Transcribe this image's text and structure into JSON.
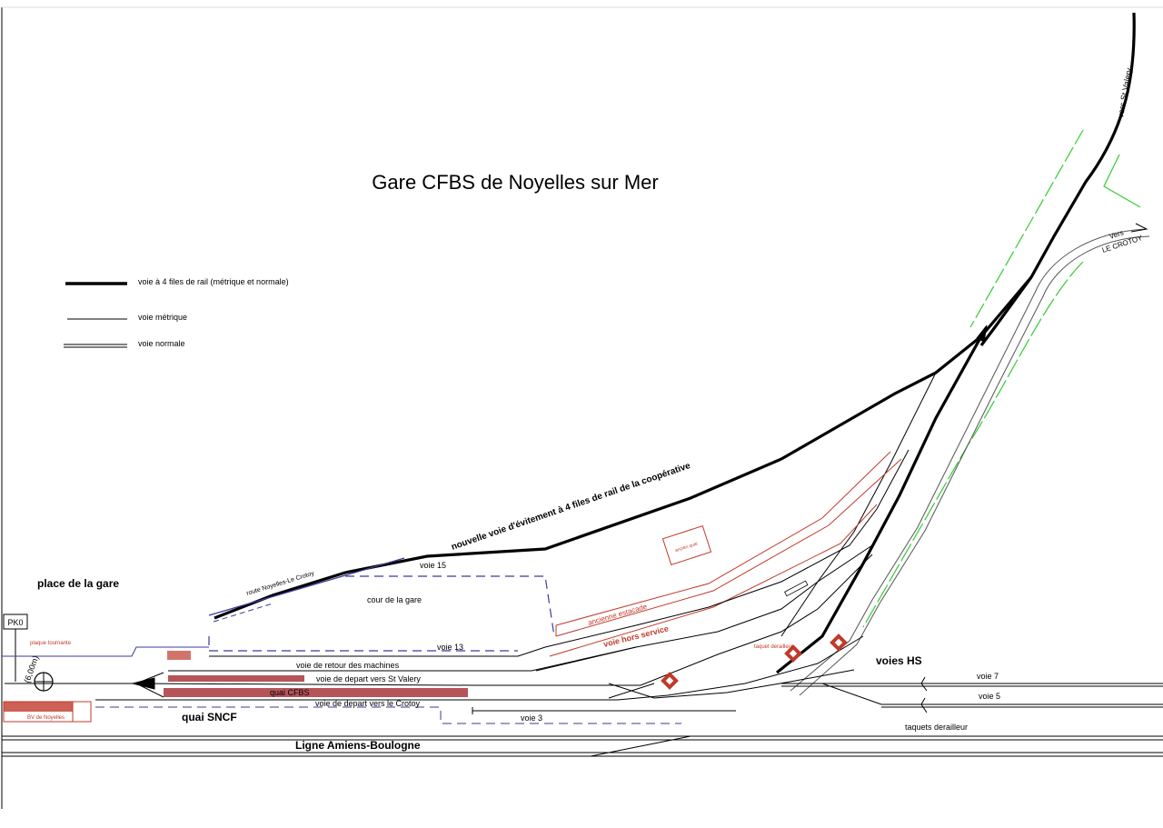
{
  "title": "Gare CFBS de Noyelles sur Mer",
  "legend": {
    "four_rail": "voie à 4 files de rail (métrique et normale)",
    "metric": "voie métrique",
    "standard": "voie normale"
  },
  "labels": {
    "place_gare": "place de la gare",
    "pk0": "PK0",
    "plaque": "plaque tournante",
    "plaque_dim": "(6,00m)",
    "bv": "BV de Noyelles",
    "route": "route Noyelles-Le Crotoy",
    "voie15": "voie 15",
    "nouvelle_voie": "nouvelle voie d'évitement à 4 files de rail de la coopérative",
    "cour": "cour de la gare",
    "ancien_quai": "ancien quai",
    "ancienne_estacade": "ancienne estacade",
    "voie_hs": "voie hors service",
    "voie13": "voie 13",
    "voie_retour": "voie de retour des machines",
    "voie_depart_stv": "voie de depart vers St Valery",
    "quai_cfbs": "quai CFBS",
    "voie_depart_crotoy": "voie de depart vers le Crotoy",
    "quai_sncf": "quai SNCF",
    "voie3": "voie 3",
    "ligne": "Ligne Amiens-Boulogne",
    "taquet": "taquet derailleur",
    "voies_hs": "voies HS",
    "voie7": "voie 7",
    "voie5": "voie 5",
    "taquets": "taquets derailleur",
    "vers_stv": "vers St Valery",
    "vers_crotoy_1": "Vers",
    "vers_crotoy_2": "LE CROTOY"
  },
  "colors": {
    "track": "#000000",
    "route": "#3b3b9e",
    "estacade": "#c0392b",
    "quai": "#b5555a",
    "green": "#33cc33"
  }
}
